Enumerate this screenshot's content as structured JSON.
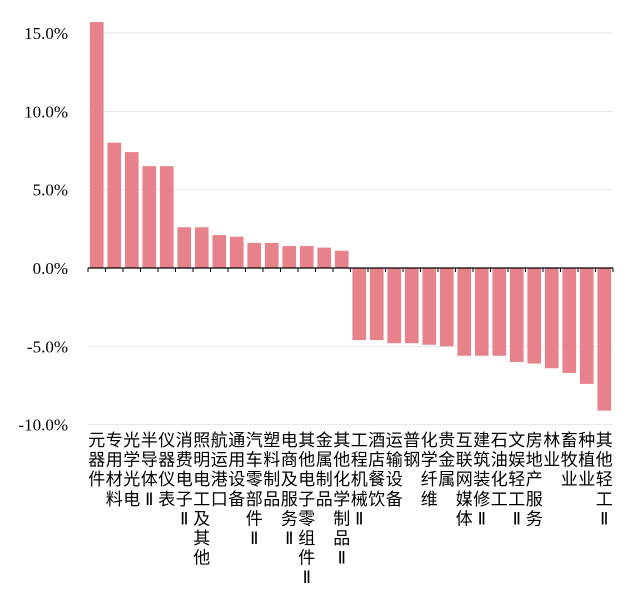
{
  "chart_data": {
    "type": "bar",
    "categories": [
      "元器件",
      "专用材料",
      "光学光电",
      "半导体",
      "仪器仪表",
      "消费电子",
      "照明电工",
      "航运港口",
      "通用设备",
      "汽车零部件",
      "塑料制品",
      "电商及服务",
      "其他电子零组件Ⅱ",
      "金属制品",
      "其他化学制品",
      "工程机械",
      "酒店餐饮",
      "运输设备",
      "普钢",
      "化学纤维",
      "贵金属",
      "互联网媒体",
      "建筑装修",
      "石油化工",
      "文娱轻工",
      "房地产服务",
      "林业",
      "畜牧业",
      "种植业",
      "其他轻工Ⅱ"
    ],
    "category_label_columns": [
      [
        "元",
        "器",
        "件"
      ],
      [
        "专",
        "用",
        "材",
        "料"
      ],
      [
        "光",
        "学",
        "光",
        "电"
      ],
      [
        "半",
        "导",
        "体",
        "Ⅱ"
      ],
      [
        "仪",
        "器",
        "仪",
        "表"
      ],
      [
        "消",
        "费",
        "电",
        "子",
        "Ⅱ"
      ],
      [
        "照",
        "明",
        "电",
        "工",
        "及",
        "其",
        "他"
      ],
      [
        "航",
        "运",
        "港",
        "口"
      ],
      [
        "通",
        "用",
        "设",
        "备"
      ],
      [
        "汽",
        "车",
        "零",
        "部",
        "件",
        "Ⅱ"
      ],
      [
        "塑",
        "料",
        "制",
        "品"
      ],
      [
        "电",
        "商",
        "及",
        "服",
        "务",
        "Ⅱ"
      ],
      [
        "其",
        "他",
        "电",
        "子",
        "零",
        "组",
        "件",
        "Ⅱ"
      ],
      [
        "金",
        "属",
        "制",
        "品"
      ],
      [
        "其",
        "他",
        "化",
        "学",
        "制",
        "品",
        "Ⅱ"
      ],
      [
        "工",
        "程",
        "机",
        "械",
        "Ⅱ"
      ],
      [
        "酒",
        "店",
        "餐",
        "饮"
      ],
      [
        "运",
        "输",
        "设",
        "备"
      ],
      [
        "普",
        "钢"
      ],
      [
        "化",
        "学",
        "纤",
        "维"
      ],
      [
        "贵",
        "金",
        "属"
      ],
      [
        "互",
        "联",
        "网",
        "媒",
        "体"
      ],
      [
        "建",
        "筑",
        "装",
        "修",
        "Ⅱ"
      ],
      [
        "石",
        "油",
        "化",
        "工"
      ],
      [
        "文",
        "娱",
        "轻",
        "工",
        "Ⅱ"
      ],
      [
        "房",
        "地",
        "产",
        "服",
        "务"
      ],
      [
        "林",
        "业"
      ],
      [
        "畜",
        "牧",
        "业"
      ],
      [
        "种",
        "植",
        "业"
      ],
      [
        "其",
        "他",
        "轻",
        "工",
        "Ⅱ"
      ]
    ],
    "values": [
      15.7,
      8.0,
      7.4,
      6.5,
      6.5,
      2.6,
      2.6,
      2.1,
      2.0,
      1.6,
      1.6,
      1.4,
      1.4,
      1.3,
      1.1,
      -4.6,
      -4.6,
      -4.8,
      -4.8,
      -4.9,
      -5.0,
      -5.6,
      -5.6,
      -5.6,
      -6.0,
      -6.1,
      -6.4,
      -6.7,
      -7.4,
      -9.1
    ],
    "ylim": [
      -10.0,
      16.0
    ],
    "yticks": [
      15.0,
      10.0,
      5.0,
      0.0,
      -5.0,
      -10.0
    ],
    "ytick_labels": [
      "15.0%",
      "10.0%",
      "5.0%",
      "0.0%",
      "-5.0%",
      "-10.0%"
    ],
    "title": "",
    "xlabel": "",
    "ylabel": "",
    "grid": true,
    "bar_color": "#E8828A",
    "grid_color": "#E6E6E6"
  }
}
